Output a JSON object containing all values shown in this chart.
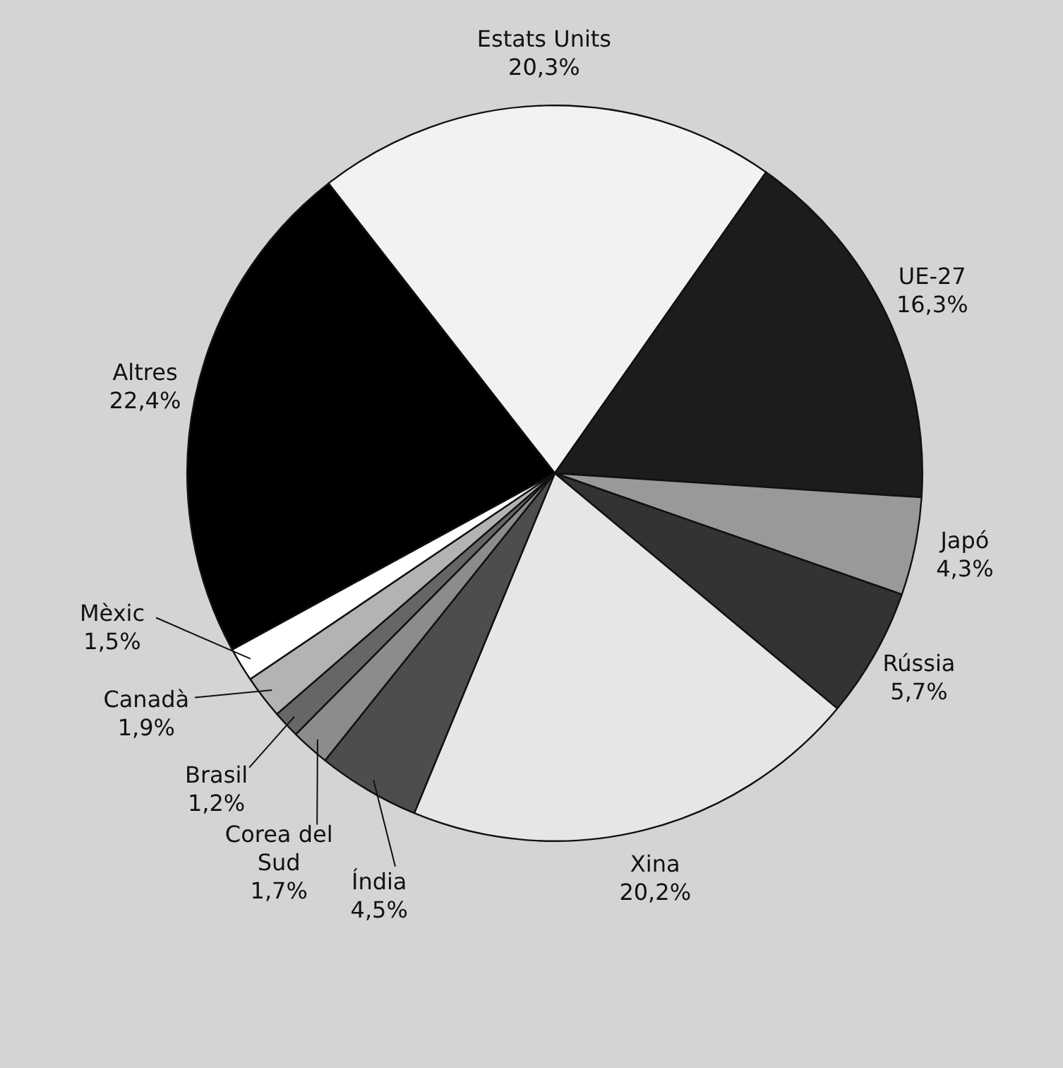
{
  "chart_data": {
    "type": "pie",
    "categories": [
      "Estats Units",
      "UE-27",
      "Japó",
      "Rússia",
      "Xina",
      "Índia",
      "Corea del Sud",
      "Brasil",
      "Canadà",
      "Mèxic",
      "Altres"
    ],
    "values": [
      20.3,
      16.3,
      4.3,
      5.7,
      20.2,
      4.5,
      1.7,
      1.2,
      1.9,
      1.5,
      22.4
    ],
    "value_labels": [
      "20,3%",
      "16,3%",
      "4,3%",
      "5,7%",
      "20,2%",
      "4,5%",
      "1,7%",
      "1,2%",
      "1,9%",
      "1,5%",
      "22,4%"
    ],
    "colors": [
      "#f2f2f2",
      "#1c1c1c",
      "#999999",
      "#333333",
      "#e6e6e6",
      "#4d4d4d",
      "#8c8c8c",
      "#666666",
      "#b3b3b3",
      "#ffffff",
      "#000000"
    ],
    "legend": false
  }
}
